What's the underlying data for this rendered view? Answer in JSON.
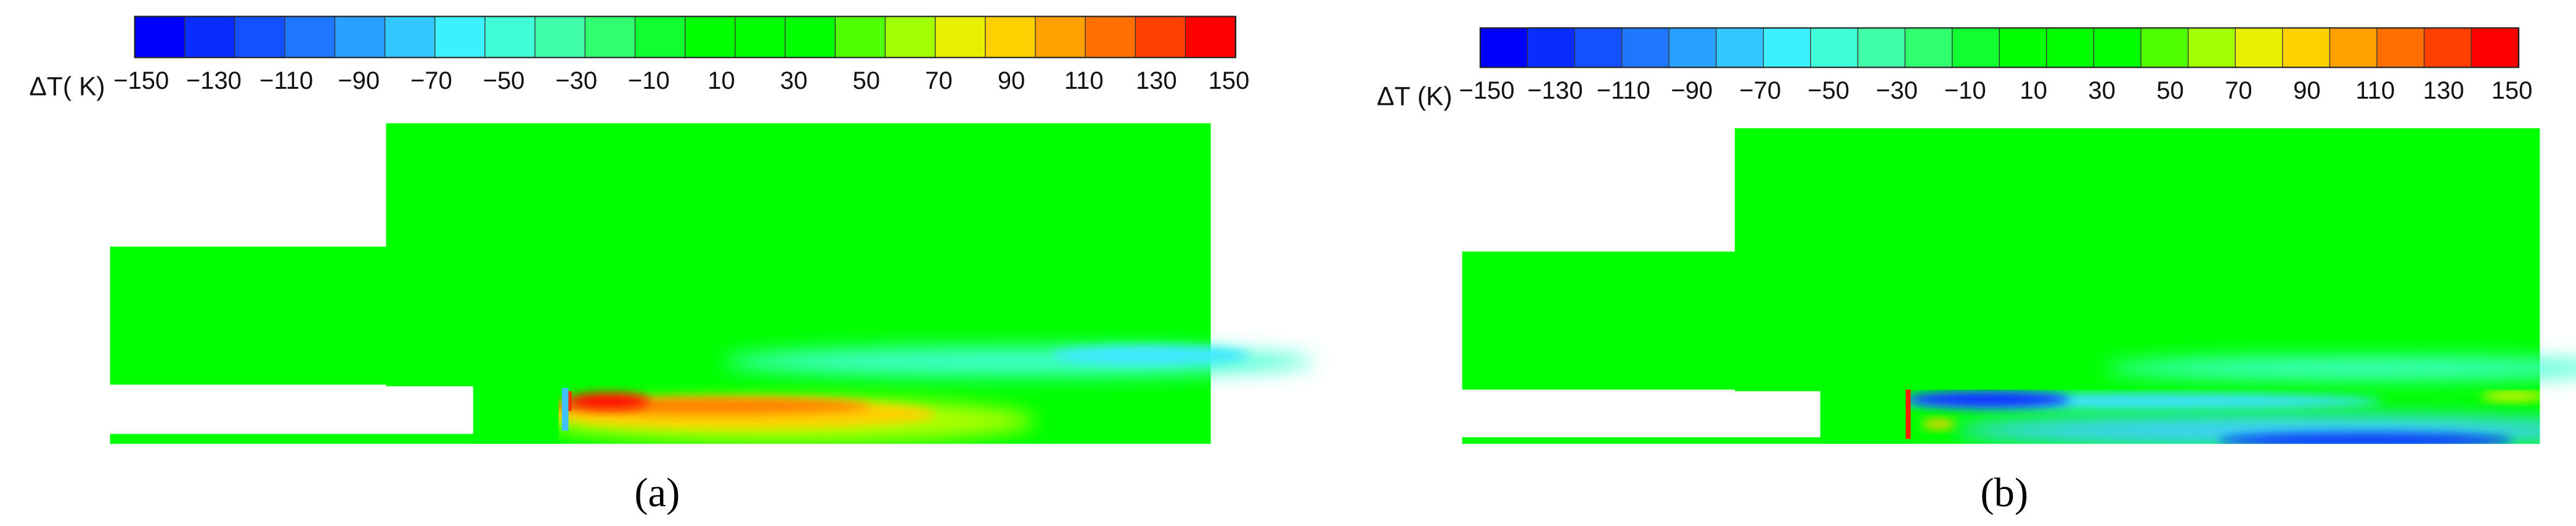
{
  "panels": [
    {
      "label": "(a)",
      "colorbar": {
        "title": "ΔT( K)",
        "tick_labels": [
          "−150",
          "−130",
          "−110",
          "−90",
          "−70",
          "−50",
          "−30",
          "−10",
          "10",
          "30",
          "50",
          "70",
          "90",
          "110",
          "130",
          "150"
        ]
      }
    },
    {
      "label": "(b)",
      "colorbar": {
        "title": "ΔT (K)",
        "tick_labels": [
          "−150",
          "−130",
          "−110",
          "−90",
          "−70",
          "−50",
          "−30",
          "−10",
          "10",
          "30",
          "50",
          "70",
          "90",
          "110",
          "130",
          "150"
        ]
      }
    }
  ]
}
